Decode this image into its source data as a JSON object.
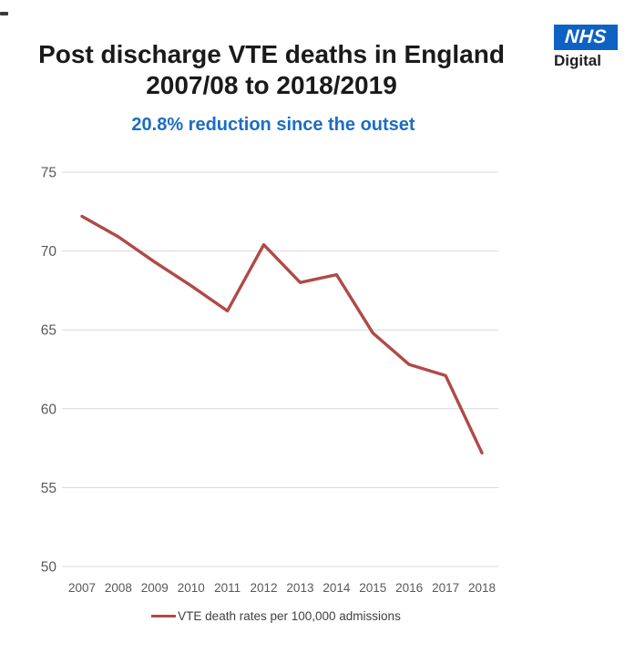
{
  "header": {
    "title_line1": "Post discharge VTE deaths in England",
    "title_line2": "2007/08 to 2018/2019"
  },
  "logo": {
    "nhs": "NHS",
    "digital": "Digital"
  },
  "subtitle": "20.8% reduction since the outset",
  "colors": {
    "line": "#b04a47",
    "subtitle_blue": "#1b6ec2",
    "nhs_blue": "#0e62c4",
    "axis_text": "#595959",
    "gridline": "#d9d9d9",
    "title_text": "#1a1a1a",
    "legend_text": "#404040"
  },
  "chart_data": {
    "type": "line",
    "title": "Post discharge VTE deaths in England 2007/08 to 2018/2019",
    "subtitle": "20.8% reduction since the outset",
    "x": [
      "2007",
      "2008",
      "2009",
      "2010",
      "2011",
      "2012",
      "2013",
      "2014",
      "2015",
      "2016",
      "2017",
      "2018"
    ],
    "series": [
      {
        "name": "VTE death rates per 100,000 admissions",
        "values": [
          72.2,
          70.9,
          69.3,
          67.8,
          66.2,
          70.4,
          68.0,
          68.5,
          64.8,
          62.8,
          62.1,
          57.2
        ]
      }
    ],
    "ylabel": "",
    "xlabel": "",
    "ylim": [
      50,
      75
    ],
    "y_ticks": [
      75,
      70,
      65,
      60,
      55,
      50
    ],
    "grid": "horizontal",
    "legend_position": "bottom",
    "line_color": "#b04a47"
  }
}
